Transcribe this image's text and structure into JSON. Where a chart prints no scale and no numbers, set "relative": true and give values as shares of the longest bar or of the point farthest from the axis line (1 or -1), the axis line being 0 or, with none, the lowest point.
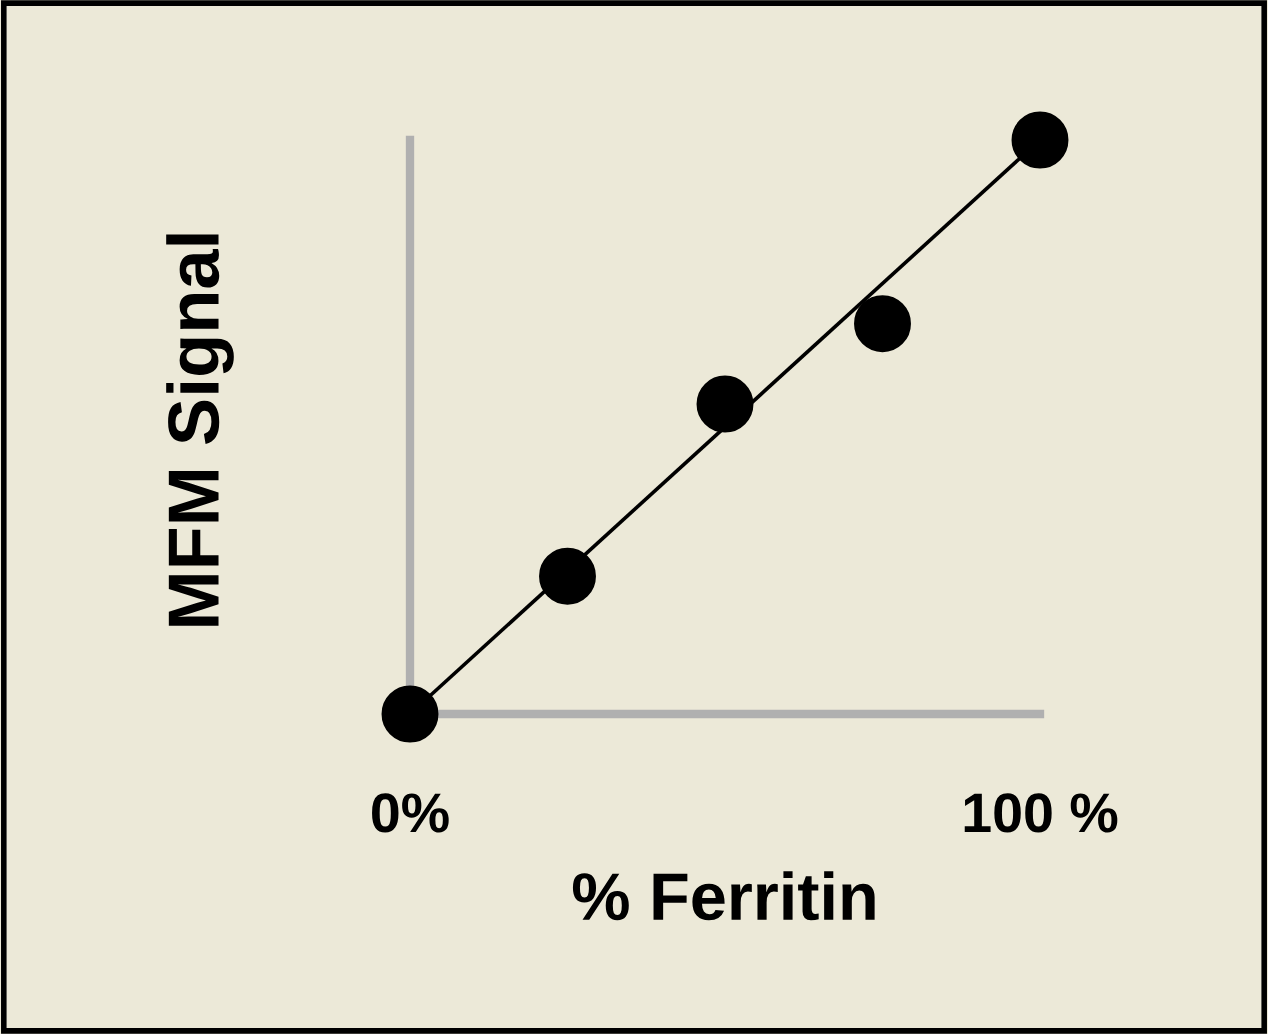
{
  "chart_data": {
    "type": "scatter",
    "xlabel": "% Ferritin",
    "ylabel": "MFM Signal",
    "relative": true,
    "xlim": [
      0,
      100
    ],
    "xticks": [
      {
        "value": 0,
        "label": "0%"
      },
      {
        "value": 100,
        "label": "100 %"
      }
    ],
    "grid": false,
    "legend": false,
    "series": [
      {
        "type": "line",
        "color": "#000000",
        "x": [
          0,
          100
        ],
        "values": [
          0,
          1
        ],
        "marker": "none"
      },
      {
        "color": "#000000",
        "marker": "circle",
        "x": [
          0,
          25,
          50,
          75,
          100
        ],
        "values": [
          0,
          0.24,
          0.54,
          0.68,
          1
        ]
      }
    ]
  }
}
